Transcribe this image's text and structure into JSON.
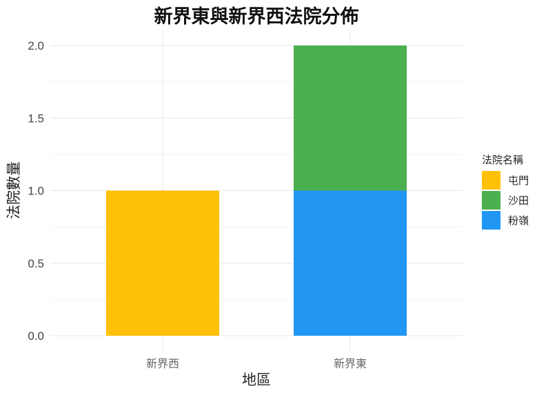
{
  "chart_data": {
    "type": "bar",
    "stacked": true,
    "title": "新界東與新界西法院分佈",
    "xlabel": "地區",
    "ylabel": "法院數量",
    "categories": [
      "新界西",
      "新界東"
    ],
    "ylim": [
      0,
      2.1
    ],
    "yticks": [
      "0.0",
      "0.5",
      "1.0",
      "1.5",
      "2.0"
    ],
    "grid": true,
    "legend": {
      "title": "法院名稱",
      "position": "right"
    },
    "series": [
      {
        "name": "粉嶺",
        "color": "#2196F3",
        "values": [
          0,
          1
        ]
      },
      {
        "name": "沙田",
        "color": "#4CAF50",
        "values": [
          0,
          1
        ]
      },
      {
        "name": "屯門",
        "color": "#FFC107",
        "values": [
          1,
          0
        ]
      }
    ],
    "legend_order": [
      "屯門",
      "沙田",
      "粉嶺"
    ]
  }
}
